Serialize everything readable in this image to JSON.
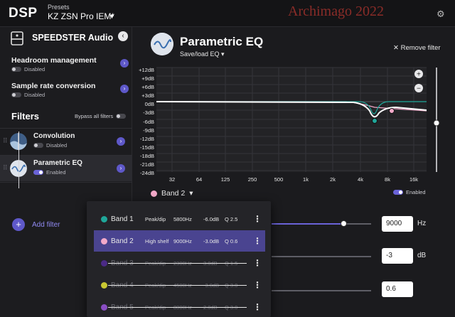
{
  "app": {
    "logo": "DSP",
    "presets_label": "Presets",
    "preset_name": "KZ ZSN Pro IEM*",
    "watermark": "Archimago 2022",
    "settings_icon": "gear-icon"
  },
  "sidebar": {
    "device_name": "SPEEDSTER Audio",
    "collapse_icon": "chevron-left-icon",
    "headroom": {
      "title": "Headroom management",
      "status": "Disabled"
    },
    "sample_rate": {
      "title": "Sample rate conversion",
      "status": "Disabled"
    },
    "filters_title": "Filters",
    "bypass_label": "Bypass all filters",
    "filters": [
      {
        "name": "Convolution",
        "status": "Disabled"
      },
      {
        "name": "Parametric EQ",
        "status": "Enabled"
      }
    ],
    "add_filter_label": "Add filter"
  },
  "main": {
    "title": "Parametric EQ",
    "save_load_label": "Save/load EQ",
    "remove_label": "Remove filter",
    "y_ticks": [
      "+12dB",
      "+9dB",
      "+6dB",
      "+3dB",
      "0dB",
      "-3dB",
      "-6dB",
      "-9dB",
      "-12dB",
      "-15dB",
      "-18dB",
      "-21dB",
      "-24dB"
    ],
    "x_ticks": [
      "32",
      "64",
      "125",
      "250",
      "500",
      "1k",
      "2k",
      "4k",
      "8k",
      "16k"
    ],
    "selected_band": "Band 2",
    "enabled_label": "Enabled",
    "frequency_value": "9000",
    "frequency_unit": "Hz",
    "frequency_level": 0.73,
    "gain_value": "-3",
    "gain_unit": "dB",
    "q_value": "0.6"
  },
  "bands": [
    {
      "name": "Band 1",
      "type": "Peak/dip",
      "freq": "5800Hz",
      "gain": "-6.0dB",
      "q": "Q 2.5",
      "color": "#1fa79a",
      "enabled": true
    },
    {
      "name": "Band 2",
      "type": "High shelf",
      "freq": "9000Hz",
      "gain": "-3.0dB",
      "q": "Q 0.6",
      "color": "#f2a9c9",
      "enabled": true,
      "selected": true
    },
    {
      "name": "Band 3",
      "type": "Peak/dip",
      "freq": "2300Hz",
      "gain": "3.0dB",
      "q": "Q 1.5",
      "color": "#4b2a86",
      "enabled": false
    },
    {
      "name": "Band 4",
      "type": "Peak/dip",
      "freq": "4500Hz",
      "gain": "-3.0dB",
      "q": "Q 3.0",
      "color": "#c9c832",
      "enabled": false
    },
    {
      "name": "Band 5",
      "type": "Peak/dip",
      "freq": "8000Hz",
      "gain": "2.0dB",
      "q": "Q 3.0",
      "color": "#8a4ec4",
      "enabled": false
    }
  ],
  "colors": {
    "accent": "#6a63d8",
    "band1": "#1fa79a",
    "band2": "#f2a9c9"
  }
}
